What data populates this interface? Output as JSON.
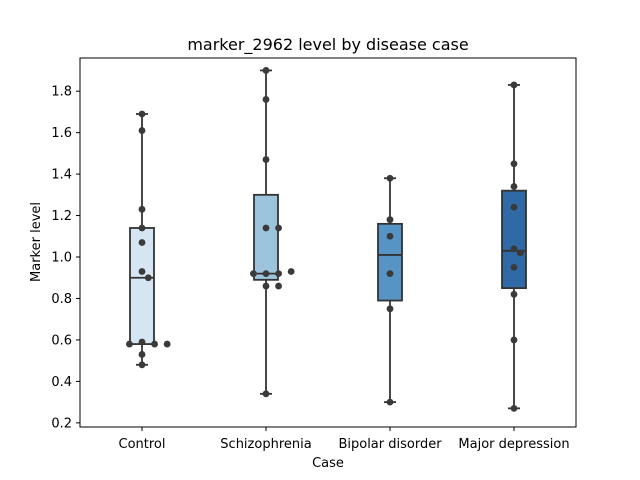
{
  "chart_data": {
    "type": "box",
    "title": "marker_2962 level by disease case",
    "xlabel": "Case",
    "ylabel": "Marker level",
    "ylim": [
      0.18,
      1.96
    ],
    "yticks": [
      0.2,
      0.4,
      0.6,
      0.8,
      1.0,
      1.2,
      1.4,
      1.6,
      1.8
    ],
    "ytick_labels": [
      "0.2",
      "0.4",
      "0.6",
      "0.8",
      "1.0",
      "1.2",
      "1.4",
      "1.6",
      "1.8"
    ],
    "grid": false,
    "categories": [
      "Control",
      "Schizophrenia",
      "Bipolar disorder",
      "Major depression"
    ],
    "box_colors": [
      "#d6e5f4",
      "#9cc4dd",
      "#5694c5",
      "#2f6aa6"
    ],
    "boxes": [
      {
        "whisker_low": 0.48,
        "q1": 0.58,
        "median": 0.9,
        "q3": 1.14,
        "whisker_high": 1.69
      },
      {
        "whisker_low": 0.34,
        "q1": 0.89,
        "median": 0.92,
        "q3": 1.3,
        "whisker_high": 1.9
      },
      {
        "whisker_low": 0.3,
        "q1": 0.79,
        "median": 1.01,
        "q3": 1.16,
        "whisker_high": 1.38
      },
      {
        "whisker_low": 0.27,
        "q1": 0.85,
        "median": 1.03,
        "q3": 1.32,
        "whisker_high": 1.83
      }
    ],
    "points": [
      {
        "category": "Control",
        "values": [
          1.69,
          1.61,
          1.23,
          1.14,
          1.07,
          0.93,
          0.9,
          0.59,
          0.58,
          0.58,
          0.58,
          0.53,
          0.48
        ]
      },
      {
        "category": "Schizophrenia",
        "values": [
          1.9,
          1.76,
          1.47,
          1.14,
          1.14,
          0.92,
          0.92,
          0.92,
          0.93,
          0.86,
          0.86,
          0.34
        ]
      },
      {
        "category": "Bipolar disorder",
        "values": [
          1.38,
          1.18,
          1.1,
          0.92,
          0.75,
          0.3
        ]
      },
      {
        "category": "Major depression",
        "values": [
          1.83,
          1.45,
          1.34,
          1.24,
          1.04,
          1.02,
          0.95,
          0.82,
          0.6,
          0.27
        ]
      }
    ],
    "point_color": "#3a3a3a"
  }
}
